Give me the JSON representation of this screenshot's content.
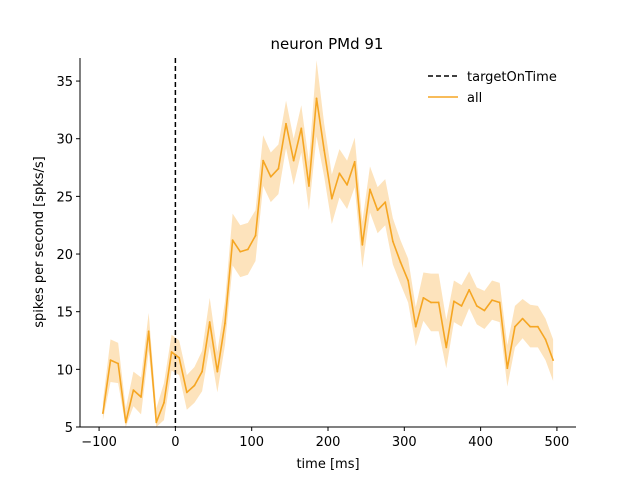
{
  "chart_data": {
    "type": "line",
    "title": "neuron PMd 91",
    "xlabel": "time [ms]",
    "ylabel": "spikes per second [spks/s]",
    "xlim": [
      -125,
      525
    ],
    "ylim": [
      5,
      37
    ],
    "xticks": [
      -100,
      0,
      100,
      200,
      300,
      400,
      500
    ],
    "yticks": [
      5,
      10,
      15,
      20,
      25,
      30,
      35
    ],
    "grid": false,
    "legend_position": "top-right",
    "vline": {
      "name": "targetOnTime",
      "x": 0,
      "color": "#000000",
      "style": "dashed"
    },
    "series": [
      {
        "name": "all",
        "color": "#f5a623",
        "band_color": "#fde3bc",
        "x": [
          -95,
          -85,
          -75,
          -65,
          -55,
          -45,
          -35,
          -25,
          -15,
          -5,
          5,
          15,
          25,
          35,
          45,
          55,
          65,
          75,
          85,
          95,
          105,
          115,
          125,
          135,
          145,
          155,
          165,
          175,
          185,
          195,
          205,
          215,
          225,
          235,
          245,
          255,
          265,
          275,
          285,
          295,
          305,
          315,
          325,
          335,
          345,
          355,
          365,
          375,
          385,
          395,
          405,
          415,
          425,
          435,
          445,
          455,
          465,
          475,
          485,
          495
        ],
        "values": [
          6.2,
          10.8,
          10.5,
          5.4,
          8.2,
          7.6,
          13.3,
          5.4,
          7.1,
          11.5,
          11.0,
          8.0,
          8.6,
          9.8,
          14.1,
          9.8,
          14.0,
          21.2,
          20.2,
          20.4,
          21.6,
          28.1,
          26.7,
          27.4,
          31.3,
          28.1,
          30.9,
          25.9,
          33.5,
          29.0,
          24.8,
          27.0,
          26.0,
          28.0,
          20.8,
          25.6,
          23.8,
          24.5,
          21.1,
          19.3,
          17.7,
          13.7,
          16.2,
          15.8,
          15.8,
          11.9,
          15.9,
          15.5,
          16.9,
          15.5,
          15.1,
          16.0,
          15.8,
          10.1,
          13.7,
          14.4,
          13.7,
          13.7,
          12.6,
          10.8
        ],
        "upper": [
          7.2,
          12.6,
          12.3,
          6.6,
          9.8,
          9.3,
          14.9,
          6.6,
          8.8,
          13.0,
          12.5,
          9.5,
          10.2,
          11.6,
          16.2,
          11.5,
          15.9,
          23.5,
          22.5,
          22.7,
          23.8,
          30.3,
          28.8,
          29.5,
          33.3,
          30.0,
          32.9,
          28.0,
          36.8,
          31.3,
          26.9,
          29.1,
          28.1,
          30.1,
          22.8,
          27.6,
          25.8,
          26.5,
          23.1,
          21.2,
          19.6,
          15.4,
          18.4,
          18.3,
          18.3,
          14.3,
          17.7,
          17.3,
          18.5,
          17.1,
          16.8,
          17.7,
          17.5,
          12.1,
          15.5,
          16.1,
          15.6,
          15.5,
          14.4,
          12.6
        ],
        "lower": [
          5.6,
          8.9,
          8.8,
          5.0,
          6.8,
          6.1,
          11.6,
          5.0,
          5.6,
          9.9,
          9.5,
          6.5,
          7.1,
          8.1,
          12.0,
          8.0,
          12.1,
          19.0,
          18.0,
          18.2,
          19.4,
          25.9,
          24.5,
          25.2,
          29.2,
          26.0,
          28.8,
          23.8,
          30.2,
          26.7,
          22.6,
          24.9,
          23.9,
          25.8,
          18.8,
          23.6,
          21.8,
          22.5,
          19.1,
          17.4,
          15.8,
          12.0,
          14.2,
          13.3,
          13.3,
          10.1,
          14.1,
          13.7,
          15.3,
          13.9,
          13.5,
          14.3,
          14.1,
          8.5,
          11.9,
          12.7,
          11.9,
          11.9,
          10.8,
          9.0
        ]
      }
    ]
  }
}
